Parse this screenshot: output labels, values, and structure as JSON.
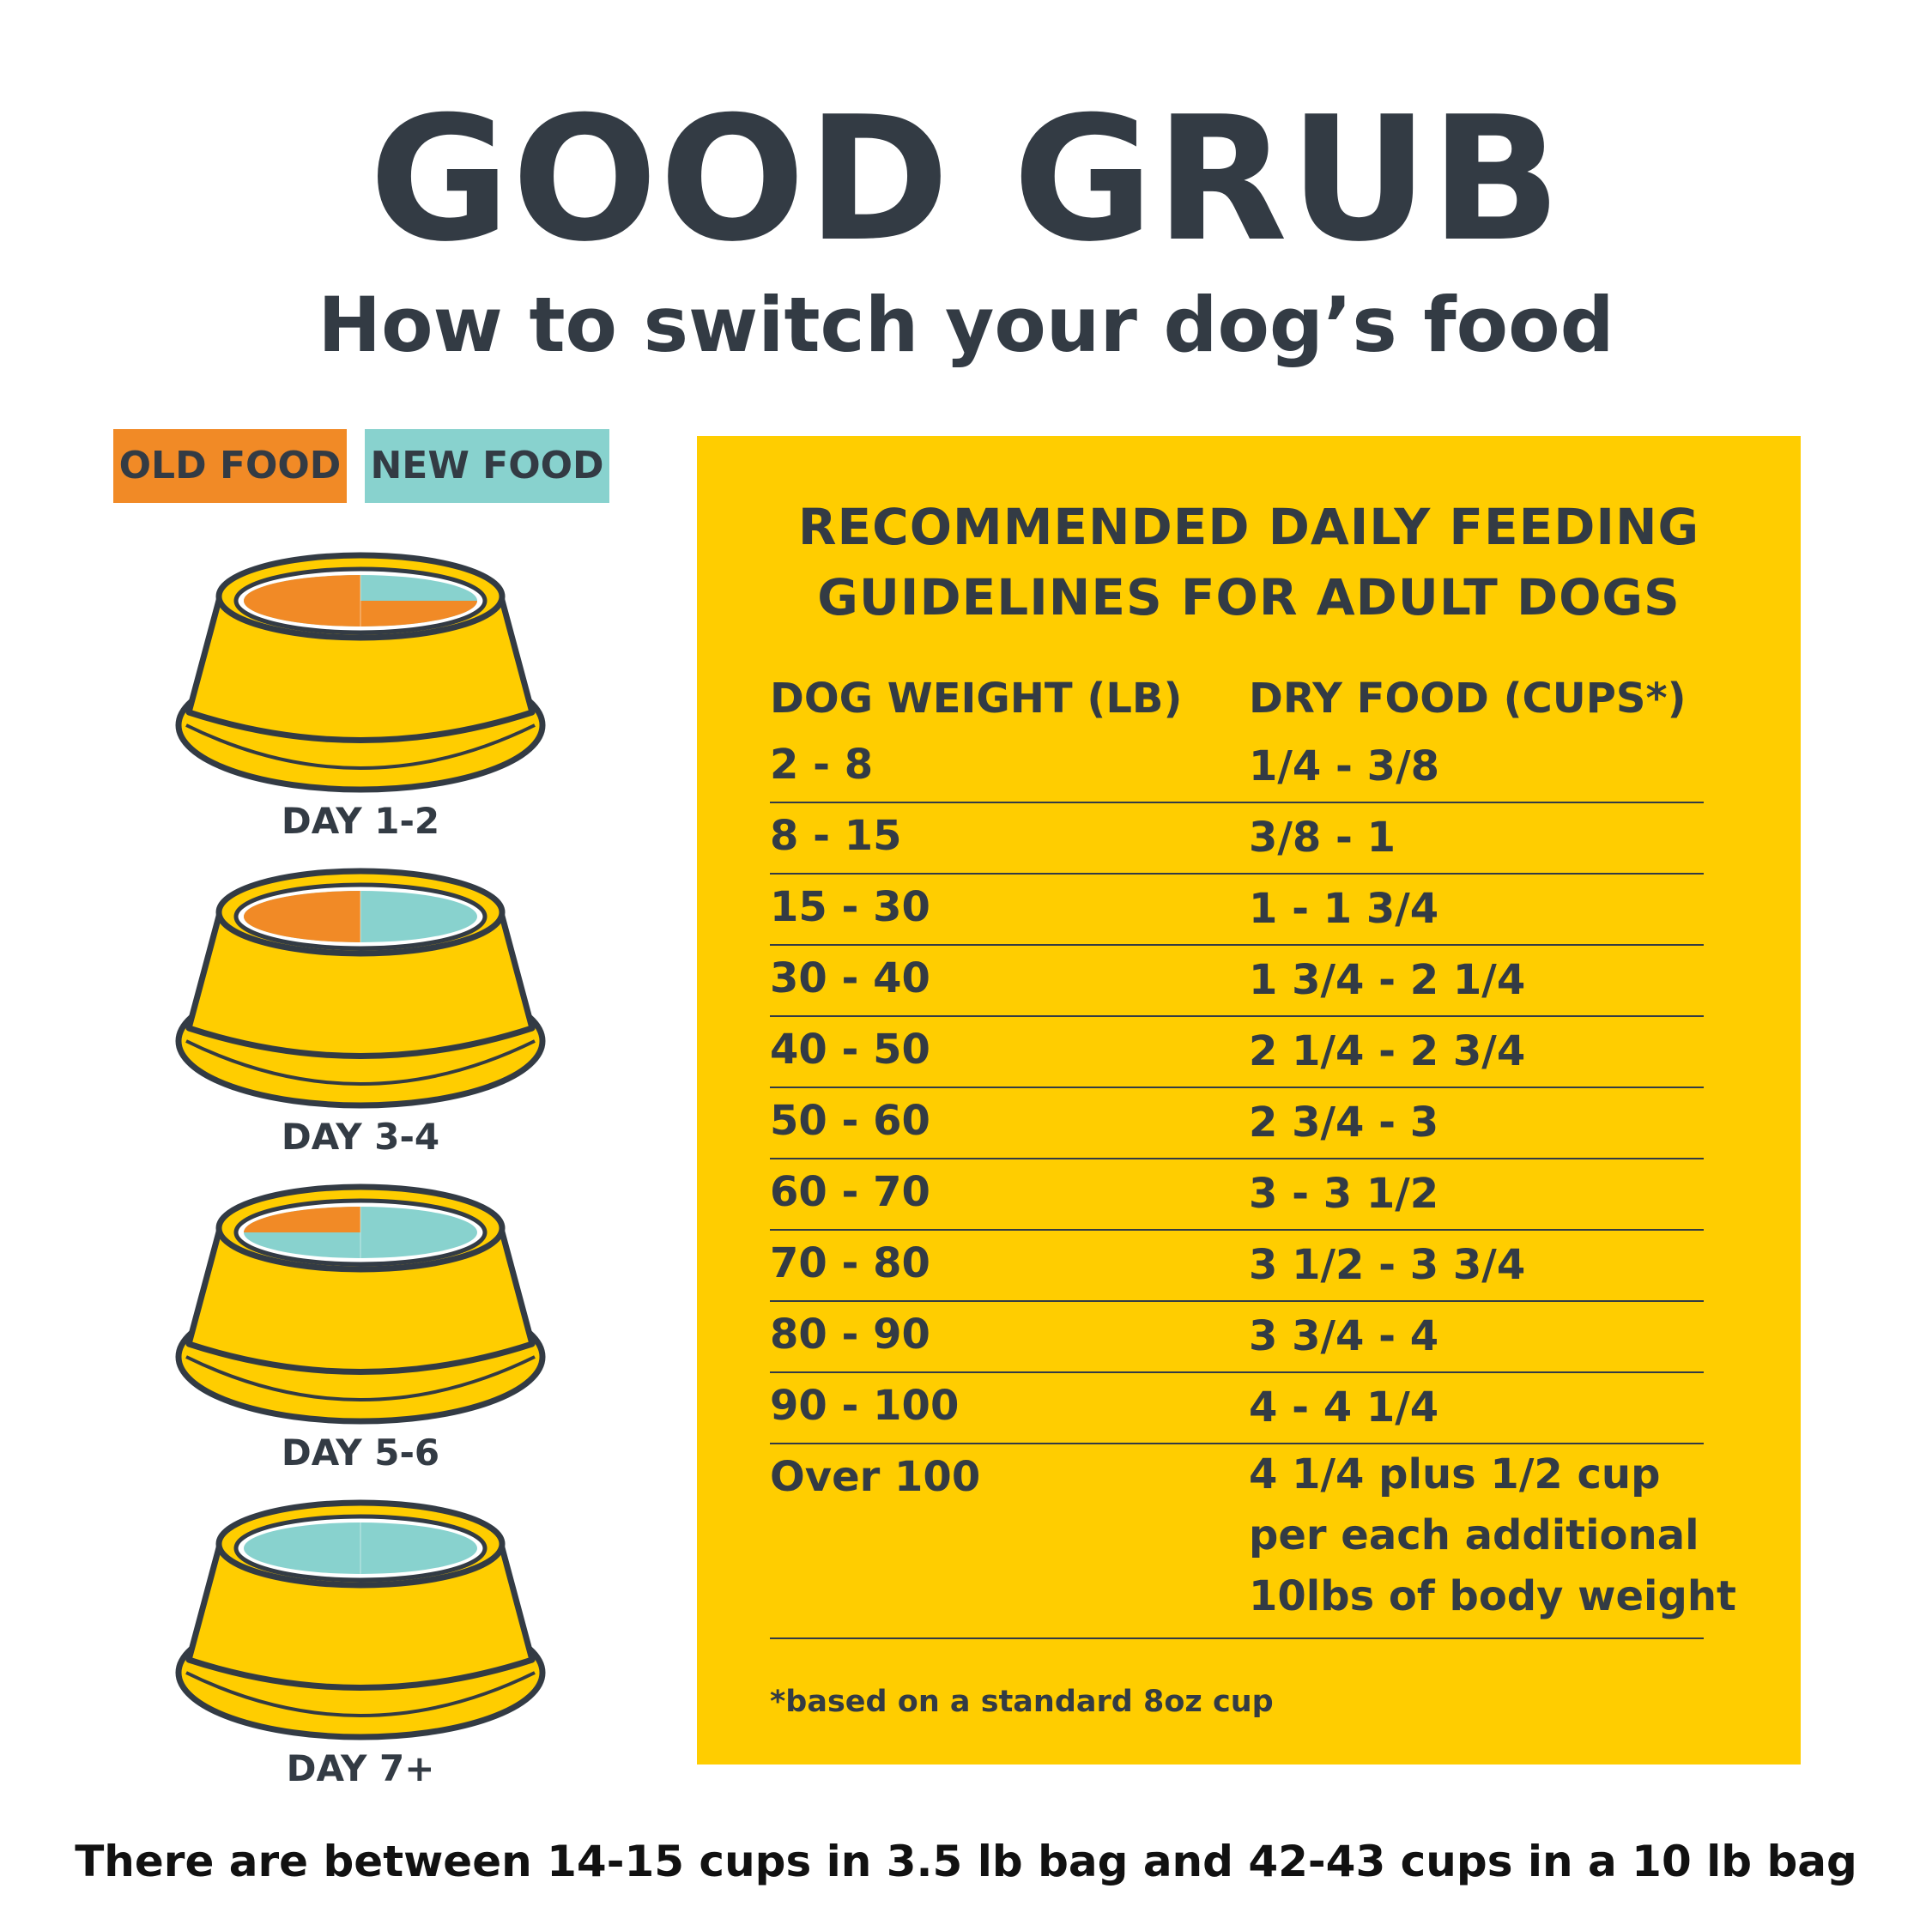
{
  "title": "GOOD GRUB",
  "subtitle": "How to switch your dog’s food",
  "colors": {
    "old_food": "#F18A26",
    "new_food": "#88D2CE",
    "bowl": "#FFCD00",
    "panel": "#FFCD00",
    "text": "#333B44"
  },
  "legend": {
    "old_food": "OLD FOOD",
    "new_food": "NEW FOOD"
  },
  "stages": [
    {
      "label": "DAY 1-2",
      "old_fraction": 0.75,
      "new_fraction": 0.25
    },
    {
      "label": "DAY 3-4",
      "old_fraction": 0.5,
      "new_fraction": 0.5
    },
    {
      "label": "DAY 5-6",
      "old_fraction": 0.25,
      "new_fraction": 0.75
    },
    {
      "label": "DAY 7+",
      "old_fraction": 0,
      "new_fraction": 1
    }
  ],
  "guidelines": {
    "title_line1": "RECOMMENDED DAILY FEEDING",
    "title_line2": "GUIDELINES FOR ADULT DOGS",
    "header_weight": "DOG WEIGHT (LB)",
    "header_food": "DRY FOOD (CUPS*)",
    "rows": [
      {
        "weight": "2 - 8",
        "cups": "1/4 - 3/8"
      },
      {
        "weight": "8 - 15",
        "cups": "3/8 - 1"
      },
      {
        "weight": "15 - 30",
        "cups": "1 - 1 3/4"
      },
      {
        "weight": "30 - 40",
        "cups": "1 3/4 - 2 1/4"
      },
      {
        "weight": "40 - 50",
        "cups": "2 1/4 - 2 3/4"
      },
      {
        "weight": "50 - 60",
        "cups": "2 3/4 - 3"
      },
      {
        "weight": "60 - 70",
        "cups": "3 - 3 1/2"
      },
      {
        "weight": "70 - 80",
        "cups": "3 1/2 - 3 3/4"
      },
      {
        "weight": "80 - 90",
        "cups": "3 3/4 - 4"
      },
      {
        "weight": "90 - 100",
        "cups": "4 - 4 1/4"
      }
    ],
    "last_row": {
      "weight": "Over 100",
      "cups_line1": "4 1/4 plus 1/2 cup",
      "cups_line2": "per each additional",
      "cups_line3": "10lbs of body weight"
    },
    "footnote": "*based on a standard 8oz cup"
  },
  "bottom_note": "There are between 14-15 cups in 3.5 lb bag and 42-43 cups in a 10 lb bag"
}
